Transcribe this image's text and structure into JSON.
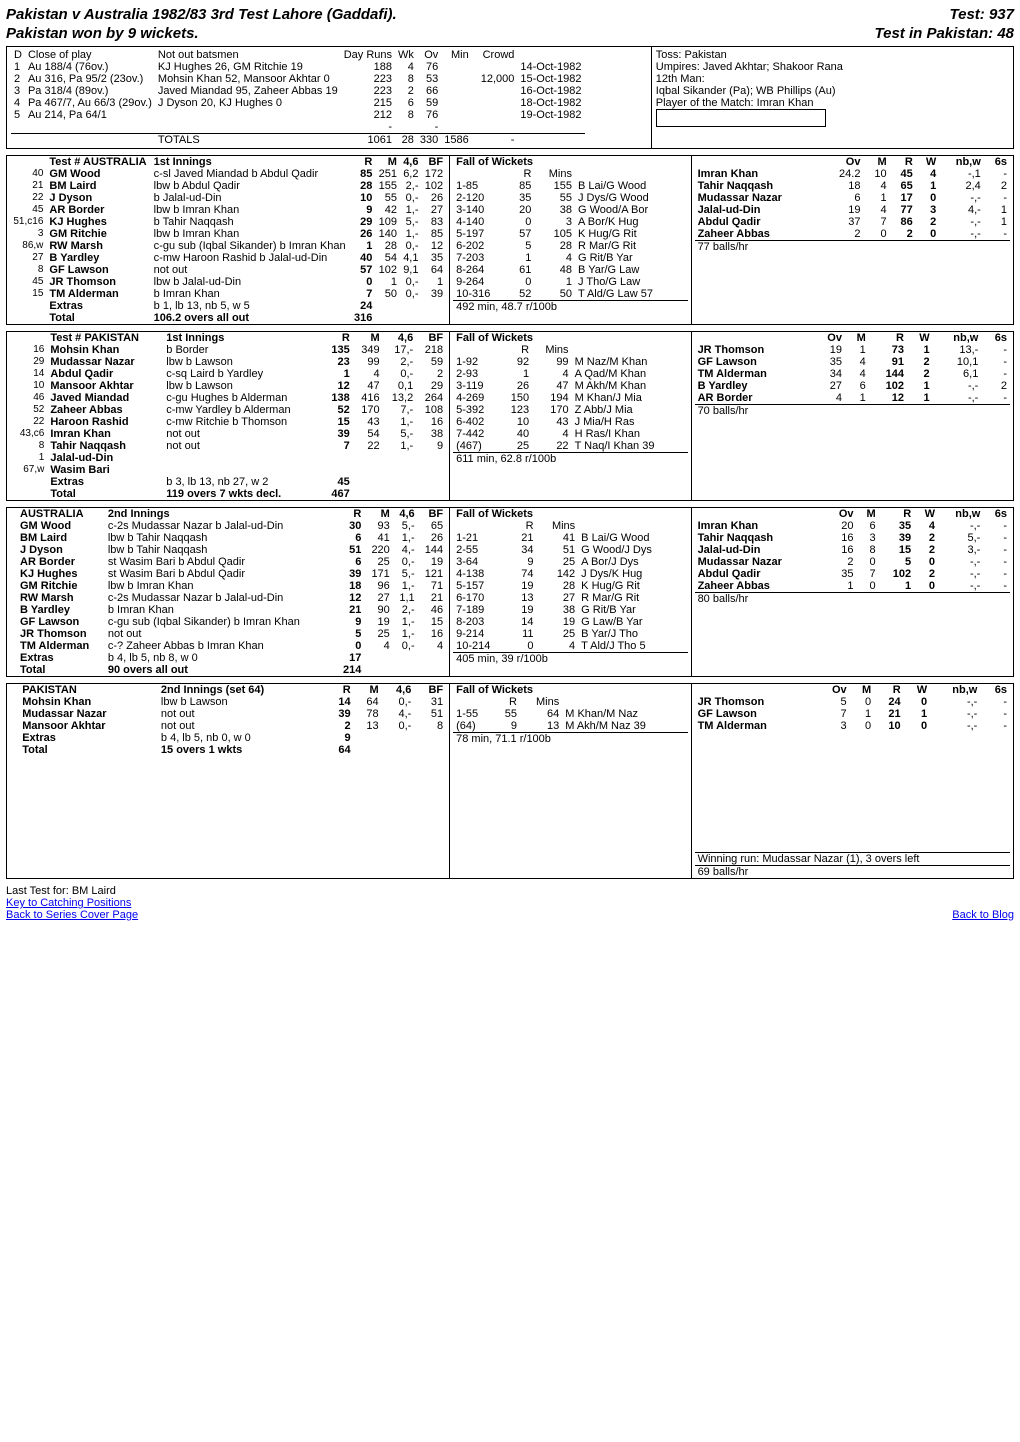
{
  "title_left": "Pakistan v Australia  1982/83    3rd Test   Lahore (Gaddafi).",
  "title_right": "Test: 937",
  "subtitle_left": "Pakistan won by 9 wickets.",
  "subtitle_right": "Test in Pakistan: 48",
  "header": {
    "close_label": "Close of play",
    "not_out_label": "Not out batsmen",
    "cols": [
      "D",
      "Day Runs",
      "Wk",
      "Ov",
      "Min",
      "Crowd"
    ],
    "days": [
      [
        "1",
        "Au 188/4 (76ov.)",
        "KJ Hughes 26, GM Ritchie 19",
        "188",
        "4",
        "76",
        "",
        "",
        "14-Oct-1982"
      ],
      [
        "2",
        "Au 316, Pa 95/2 (23ov.)",
        "Mohsin Khan 52, Mansoor Akhtar 0",
        "223",
        "8",
        "53",
        "",
        "12,000",
        "15-Oct-1982"
      ],
      [
        "3",
        "Pa 318/4 (89ov.)",
        "Javed Miandad 95, Zaheer Abbas 19",
        "223",
        "2",
        "66",
        "",
        "",
        "16-Oct-1982"
      ],
      [
        "4",
        "Pa 467/7, Au 66/3 (29ov.)",
        "J Dyson 20, KJ Hughes 0",
        "215",
        "6",
        "59",
        "",
        "",
        "18-Oct-1982"
      ],
      [
        "5",
        "Au 214, Pa 64/1",
        "",
        "212",
        "8",
        "76",
        "",
        "",
        "19-Oct-1982"
      ],
      [
        "",
        "",
        "",
        "-",
        "",
        "-",
        "",
        "",
        ""
      ]
    ],
    "totals_label": "TOTALS",
    "totals": [
      "1061",
      "28",
      "330",
      "1586",
      "-"
    ],
    "toss": "Toss: Pakistan",
    "umpires": "Umpires: Javed Akhtar; Shakoor Rana",
    "twelfth": "12th Man:",
    "sikander": "Iqbal Sikander (Pa); WB Phillips (Au)",
    "pom": "Player of the Match: Imran Khan"
  },
  "inn1": {
    "team": "Test # AUSTRALIA",
    "label": "1st Innings",
    "bat_headers": [
      "",
      "",
      "",
      "R",
      "M",
      "4,6",
      "BF"
    ],
    "batsmen": [
      [
        "40",
        "GM Wood",
        "c-sl Javed Miandad b Abdul Qadir",
        "85",
        "251",
        "6,2",
        "172"
      ],
      [
        "21",
        "BM Laird",
        "lbw b Abdul Qadir",
        "28",
        "155",
        "2,-",
        "102"
      ],
      [
        "22",
        "J Dyson",
        "b Jalal-ud-Din",
        "10",
        "55",
        "0,-",
        "26"
      ],
      [
        "45",
        "AR Border",
        "lbw b Imran Khan",
        "9",
        "42",
        "1,-",
        "27"
      ],
      [
        "51,c16",
        "KJ Hughes",
        "b Tahir Naqqash",
        "29",
        "109",
        "5,-",
        "83"
      ],
      [
        "3",
        "GM Ritchie",
        "lbw b Imran Khan",
        "26",
        "140",
        "1,-",
        "85"
      ],
      [
        "86,w",
        "RW Marsh",
        "c-gu sub (Iqbal Sikander) b Imran Khan",
        "1",
        "28",
        "0,-",
        "12"
      ],
      [
        "27",
        "B Yardley",
        "c-mw Haroon Rashid b Jalal-ud-Din",
        "40",
        "54",
        "4,1",
        "35"
      ],
      [
        "8",
        "GF Lawson",
        "not out",
        "57",
        "102",
        "9,1",
        "64"
      ],
      [
        "45",
        "JR Thomson",
        "lbw b Jalal-ud-Din",
        "0",
        "1",
        "0,-",
        "1"
      ],
      [
        "15",
        "TM Alderman",
        "b Imran Khan",
        "7",
        "50",
        "0,-",
        "39"
      ]
    ],
    "extras_label": "Extras",
    "extras_detail": "b 1, lb 13, nb 5, w 5",
    "extras_runs": "24",
    "total_label": "Total",
    "total_detail": "106.2 overs   all out",
    "total_runs": "316",
    "fow_title": "Fall of Wickets",
    "fow_cols": [
      "",
      "R",
      "Mins",
      ""
    ],
    "fow": [
      [
        "1-85",
        "85",
        "155",
        "B Lai/G Wood"
      ],
      [
        "2-120",
        "35",
        "55",
        "J Dys/G Wood"
      ],
      [
        "3-140",
        "20",
        "38",
        "G Wood/A Bor"
      ],
      [
        "4-140",
        "0",
        "3",
        "A Bor/K Hug"
      ],
      [
        "5-197",
        "57",
        "105",
        "K Hug/G Rit"
      ],
      [
        "6-202",
        "5",
        "28",
        "R Mar/G Rit"
      ],
      [
        "7-203",
        "1",
        "4",
        "G Rit/B Yar"
      ],
      [
        "8-264",
        "61",
        "48",
        "B Yar/G Law"
      ],
      [
        "9-264",
        "0",
        "1",
        "J Tho/G Law"
      ],
      [
        "10-316",
        "52",
        "50",
        "T Ald/G Law 57"
      ]
    ],
    "summary": "492 min, 48.7 r/100b",
    "balls_hr": "77 balls/hr",
    "bowl_headers": [
      "",
      "Ov",
      "M",
      "R",
      "W",
      "nb,w",
      "6s"
    ],
    "bowlers": [
      [
        "Imran Khan",
        "24.2",
        "10",
        "45",
        "4",
        "-,1",
        "-"
      ],
      [
        "Tahir Naqqash",
        "18",
        "4",
        "65",
        "1",
        "2,4",
        "2"
      ],
      [
        "Mudassar Nazar",
        "6",
        "1",
        "17",
        "0",
        "-,-",
        "-"
      ],
      [
        "Jalal-ud-Din",
        "19",
        "4",
        "77",
        "3",
        "4,-",
        "1"
      ],
      [
        "Abdul Qadir",
        "37",
        "7",
        "86",
        "2",
        "-,-",
        "1"
      ],
      [
        "Zaheer Abbas",
        "2",
        "0",
        "2",
        "0",
        "-,-",
        "-"
      ]
    ]
  },
  "inn2": {
    "team": "Test # PAKISTAN",
    "label": "1st Innings",
    "bat_headers": [
      "",
      "",
      "",
      "R",
      "M",
      "4,6",
      "BF"
    ],
    "batsmen": [
      [
        "16",
        "Mohsin Khan",
        "b Border",
        "135",
        "349",
        "17,-",
        "218"
      ],
      [
        "29",
        "Mudassar Nazar",
        "lbw b Lawson",
        "23",
        "99",
        "2,-",
        "59"
      ],
      [
        "14",
        "Abdul Qadir",
        "c-sq Laird b Yardley",
        "1",
        "4",
        "0,-",
        "2"
      ],
      [
        "10",
        "Mansoor Akhtar",
        "lbw b Lawson",
        "12",
        "47",
        "0,1",
        "29"
      ],
      [
        "46",
        "Javed Miandad",
        "c-gu Hughes b Alderman",
        "138",
        "416",
        "13,2",
        "264"
      ],
      [
        "52",
        "Zaheer Abbas",
        "c-mw Yardley b Alderman",
        "52",
        "170",
        "7,-",
        "108"
      ],
      [
        "22",
        "Haroon Rashid",
        "c-mw Ritchie b Thomson",
        "15",
        "43",
        "1,-",
        "16"
      ],
      [
        "43,c6",
        "Imran Khan",
        "not out",
        "39",
        "54",
        "5,-",
        "38"
      ],
      [
        "8",
        "Tahir Naqqash",
        "not out",
        "7",
        "22",
        "1,-",
        "9"
      ],
      [
        "1",
        "Jalal-ud-Din",
        "",
        "",
        "",
        "",
        ""
      ],
      [
        "67,w",
        "Wasim Bari",
        "",
        "",
        "",
        "",
        ""
      ]
    ],
    "extras_label": "Extras",
    "extras_detail": "b 3, lb 13, nb 27, w 2",
    "extras_runs": "45",
    "total_label": "Total",
    "total_detail": "119 overs   7 wkts decl.",
    "total_runs": "467",
    "fow_title": "Fall of Wickets",
    "fow_cols": [
      "",
      "R",
      "Mins",
      ""
    ],
    "fow": [
      [
        "1-92",
        "92",
        "99",
        "M Naz/M Khan"
      ],
      [
        "2-93",
        "1",
        "4",
        "A Qad/M Khan"
      ],
      [
        "3-119",
        "26",
        "47",
        "M Akh/M Khan"
      ],
      [
        "4-269",
        "150",
        "194",
        "M Khan/J Mia"
      ],
      [
        "5-392",
        "123",
        "170",
        "Z Abb/J Mia"
      ],
      [
        "6-402",
        "10",
        "43",
        "J Mia/H Ras"
      ],
      [
        "7-442",
        "40",
        "4",
        "H Ras/I Khan"
      ],
      [
        "(467)",
        "25",
        "22",
        "T Naq/I Khan 39"
      ]
    ],
    "summary": "611 min, 62.8 r/100b",
    "balls_hr": "70 balls/hr",
    "bowl_headers": [
      "",
      "Ov",
      "M",
      "R",
      "W",
      "nb,w",
      "6s"
    ],
    "bowlers": [
      [
        "JR Thomson",
        "19",
        "1",
        "73",
        "1",
        "13,-",
        "-"
      ],
      [
        "GF Lawson",
        "35",
        "4",
        "91",
        "2",
        "10,1",
        "-"
      ],
      [
        "TM Alderman",
        "34",
        "4",
        "144",
        "2",
        "6,1",
        "-"
      ],
      [
        "B Yardley",
        "27",
        "6",
        "102",
        "1",
        "-,-",
        "2"
      ],
      [
        "AR Border",
        "4",
        "1",
        "12",
        "1",
        "-,-",
        "-"
      ]
    ]
  },
  "inn3": {
    "team": "AUSTRALIA",
    "label": "2nd Innings",
    "bat_headers": [
      "",
      "",
      "",
      "R",
      "M",
      "4,6",
      "BF"
    ],
    "batsmen": [
      [
        "",
        "GM Wood",
        "c-2s Mudassar Nazar b Jalal-ud-Din",
        "30",
        "93",
        "5,-",
        "65"
      ],
      [
        "",
        "BM Laird",
        "lbw b Tahir Naqqash",
        "6",
        "41",
        "1,-",
        "26"
      ],
      [
        "",
        "J Dyson",
        "lbw b Tahir Naqqash",
        "51",
        "220",
        "4,-",
        "144"
      ],
      [
        "",
        "AR Border",
        "st Wasim Bari b Abdul Qadir",
        "6",
        "25",
        "0,-",
        "19"
      ],
      [
        "",
        "KJ Hughes",
        "st Wasim Bari b Abdul Qadir",
        "39",
        "171",
        "5,-",
        "121"
      ],
      [
        "",
        "GM Ritchie",
        "lbw b Imran Khan",
        "18",
        "96",
        "1,-",
        "71"
      ],
      [
        "",
        "RW Marsh",
        "c-2s Mudassar Nazar b Jalal-ud-Din",
        "12",
        "27",
        "1,1",
        "21"
      ],
      [
        "",
        "B Yardley",
        "b Imran Khan",
        "21",
        "90",
        "2,-",
        "46"
      ],
      [
        "",
        "GF Lawson",
        "c-gu sub (Iqbal Sikander) b Imran Khan",
        "9",
        "19",
        "1,-",
        "15"
      ],
      [
        "",
        "JR Thomson",
        "not out",
        "5",
        "25",
        "1,-",
        "16"
      ],
      [
        "",
        "TM Alderman",
        "c-? Zaheer Abbas b Imran Khan",
        "0",
        "4",
        "0,-",
        "4"
      ]
    ],
    "extras_label": "Extras",
    "extras_detail": "b 4, lb 5, nb 8, w 0",
    "extras_runs": "17",
    "total_label": "Total",
    "total_detail": "90 overs   all out",
    "total_runs": "214",
    "fow_title": "Fall of Wickets",
    "fow_cols": [
      "",
      "R",
      "Mins",
      ""
    ],
    "fow": [
      [
        "1-21",
        "21",
        "41",
        "B Lai/G Wood"
      ],
      [
        "2-55",
        "34",
        "51",
        "G Wood/J Dys"
      ],
      [
        "3-64",
        "9",
        "25",
        "A Bor/J Dys"
      ],
      [
        "4-138",
        "74",
        "142",
        "J Dys/K Hug"
      ],
      [
        "5-157",
        "19",
        "28",
        "K Hug/G Rit"
      ],
      [
        "6-170",
        "13",
        "27",
        "R Mar/G Rit"
      ],
      [
        "7-189",
        "19",
        "38",
        "G Rit/B Yar"
      ],
      [
        "8-203",
        "14",
        "19",
        "G Law/B Yar"
      ],
      [
        "9-214",
        "11",
        "25",
        "B Yar/J Tho"
      ],
      [
        "10-214",
        "0",
        "4",
        "T Ald/J Tho 5"
      ]
    ],
    "summary": "405 min, 39 r/100b",
    "balls_hr": "80 balls/hr",
    "bowl_headers": [
      "",
      "Ov",
      "M",
      "R",
      "W",
      "nb,w",
      "6s"
    ],
    "bowlers": [
      [
        "Imran Khan",
        "20",
        "6",
        "35",
        "4",
        "-,-",
        "-"
      ],
      [
        "Tahir Naqqash",
        "16",
        "3",
        "39",
        "2",
        "5,-",
        "-"
      ],
      [
        "Jalal-ud-Din",
        "16",
        "8",
        "15",
        "2",
        "3,-",
        "-"
      ],
      [
        "Mudassar Nazar",
        "2",
        "0",
        "5",
        "0",
        "-,-",
        "-"
      ],
      [
        "Abdul Qadir",
        "35",
        "7",
        "102",
        "2",
        "-,-",
        "-"
      ],
      [
        "Zaheer Abbas",
        "1",
        "0",
        "1",
        "0",
        "-,-",
        "-"
      ]
    ]
  },
  "inn4": {
    "team": "PAKISTAN",
    "label": "2nd Innings (set 64)",
    "bat_headers": [
      "",
      "",
      "",
      "R",
      "M",
      "4,6",
      "BF"
    ],
    "batsmen": [
      [
        "",
        "Mohsin Khan",
        "lbw b Lawson",
        "14",
        "64",
        "0,-",
        "31"
      ],
      [
        "",
        "Mudassar Nazar",
        "not out",
        "39",
        "78",
        "4,-",
        "51"
      ],
      [
        "",
        "Mansoor Akhtar",
        "not out",
        "2",
        "13",
        "0,-",
        "8"
      ]
    ],
    "extras_label": "Extras",
    "extras_detail": "b 4, lb 5, nb 0, w 0",
    "extras_runs": "9",
    "total_label": "Total",
    "total_detail": "15 overs   1 wkts",
    "total_runs": "64",
    "fow_title": "Fall of Wickets",
    "fow_cols": [
      "",
      "R",
      "Mins",
      ""
    ],
    "fow": [
      [
        "1-55",
        "55",
        "64",
        "M Khan/M Naz"
      ],
      [
        "(64)",
        "9",
        "13",
        "M Akh/M Naz 39"
      ]
    ],
    "summary": "78 min, 71.1 r/100b",
    "balls_hr": "69 balls/hr",
    "bowl_headers": [
      "",
      "Ov",
      "M",
      "R",
      "W",
      "nb,w",
      "6s"
    ],
    "bowlers": [
      [
        "JR Thomson",
        "5",
        "0",
        "24",
        "0",
        "-,-",
        "-"
      ],
      [
        "GF Lawson",
        "7",
        "1",
        "21",
        "1",
        "-,-",
        "-"
      ],
      [
        "TM Alderman",
        "3",
        "0",
        "10",
        "0",
        "-,-",
        "-"
      ]
    ],
    "winning_run": "Winning run: Mudassar Nazar (1), 3 overs left"
  },
  "footer": {
    "last_test": "Last Test for: BM Laird",
    "link1": "Key to Catching Positions",
    "link2": "Back to Series Cover Page",
    "link3": "Back to Blog"
  }
}
